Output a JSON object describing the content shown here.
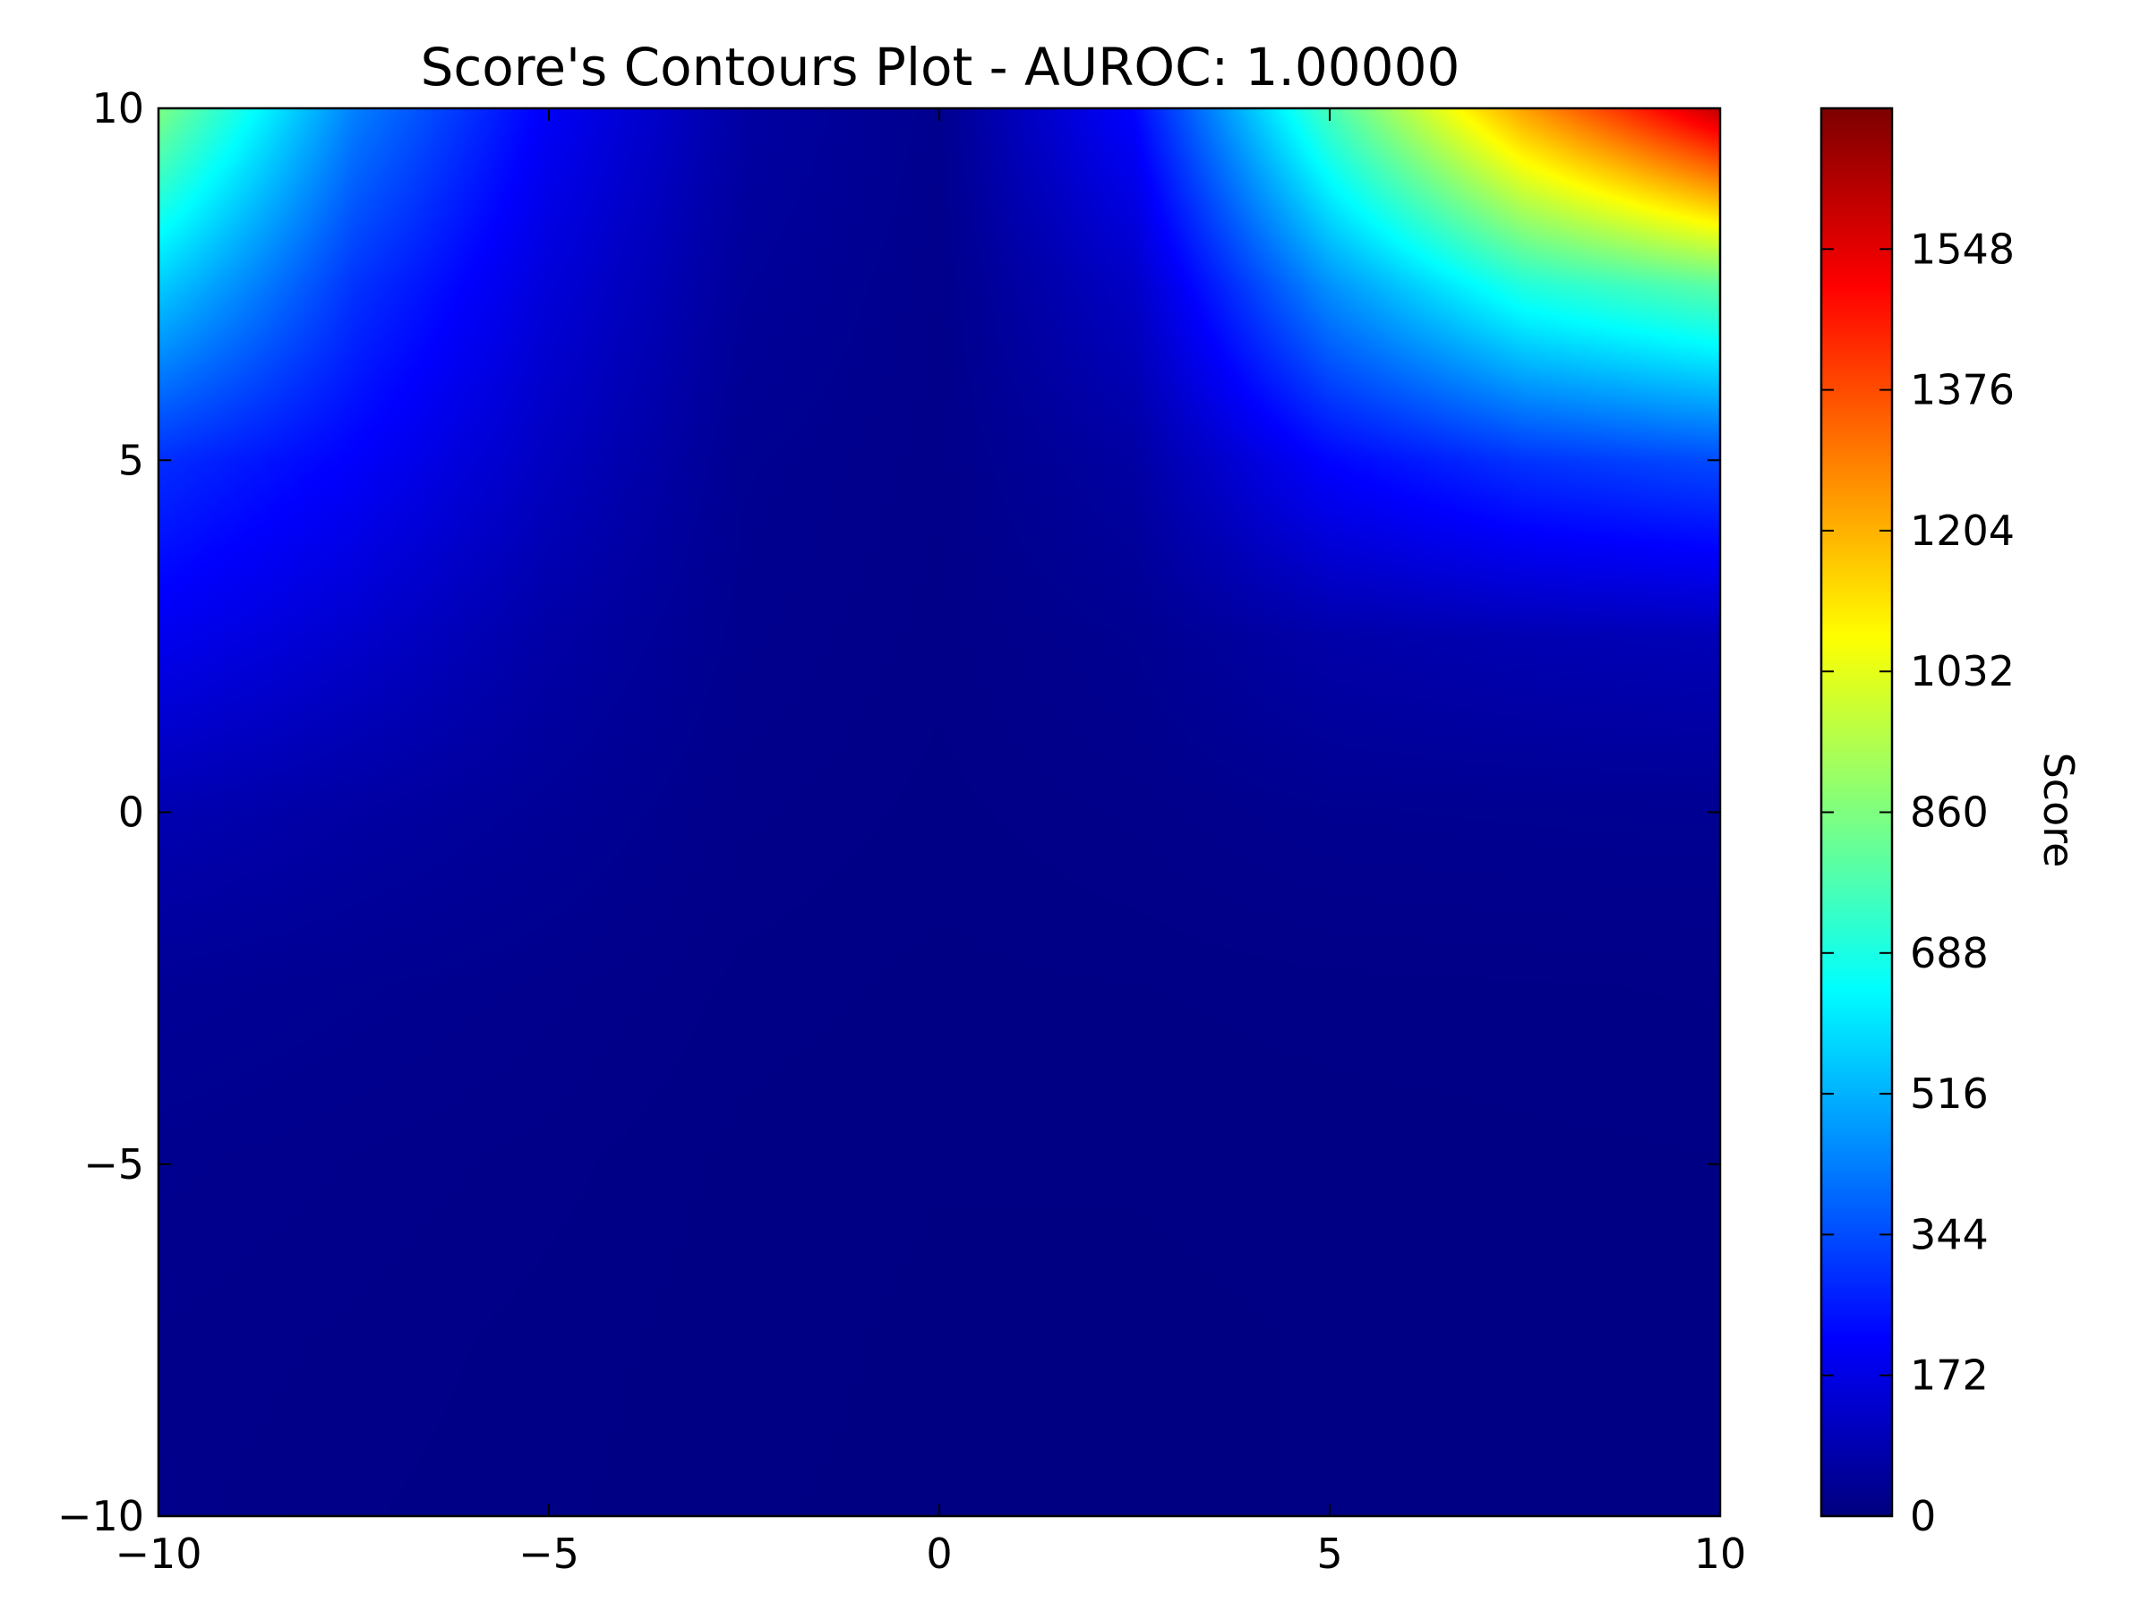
{
  "chart_data": {
    "type": "heatmap",
    "title": "Score's Contours Plot - AUROC: 1.00000",
    "xlabel": "",
    "ylabel": "",
    "xlim": [
      -10,
      10
    ],
    "ylim": [
      -10,
      10
    ],
    "x_ticks": [
      -10,
      -5,
      0,
      5,
      10
    ],
    "y_ticks": [
      -10,
      -5,
      0,
      5,
      10
    ],
    "x_tick_labels": [
      "−10",
      "−5",
      "0",
      "5",
      "10"
    ],
    "y_tick_labels": [
      "−10",
      "−5",
      "0",
      "5",
      "10"
    ],
    "grid": false,
    "colormap": "jet",
    "colorbar": {
      "label": "Score",
      "range": [
        0,
        1720
      ],
      "ticks": [
        0,
        172,
        344,
        516,
        688,
        860,
        1032,
        1204,
        1376,
        1548
      ],
      "tick_labels": [
        "0",
        "172",
        "344",
        "516",
        "688",
        "860",
        "1032",
        "1204",
        "1376",
        "1548"
      ]
    },
    "grid_x": [
      -10,
      -7.5,
      -5,
      -2.5,
      0,
      2.5,
      5,
      7.5,
      10
    ],
    "grid_y": [
      10,
      7.5,
      5,
      2.5,
      0,
      -2.5,
      -5,
      -7.5,
      -10
    ],
    "z": [
      [
        850,
        430,
        200,
        60,
        25,
        220,
        760,
        1230,
        1600
      ],
      [
        560,
        300,
        150,
        45,
        20,
        120,
        460,
        700,
        800
      ],
      [
        290,
        210,
        110,
        30,
        18,
        60,
        220,
        300,
        340
      ],
      [
        190,
        130,
        65,
        25,
        15,
        30,
        70,
        85,
        95
      ],
      [
        85,
        60,
        40,
        18,
        12,
        18,
        28,
        30,
        32
      ],
      [
        38,
        30,
        22,
        12,
        9,
        10,
        12,
        13,
        14
      ],
      [
        25,
        20,
        15,
        9,
        7,
        7,
        8,
        9,
        10
      ],
      [
        20,
        16,
        12,
        8,
        6,
        6,
        7,
        8,
        9
      ],
      [
        18,
        14,
        11,
        7,
        6,
        6,
        7,
        8,
        9
      ]
    ]
  }
}
